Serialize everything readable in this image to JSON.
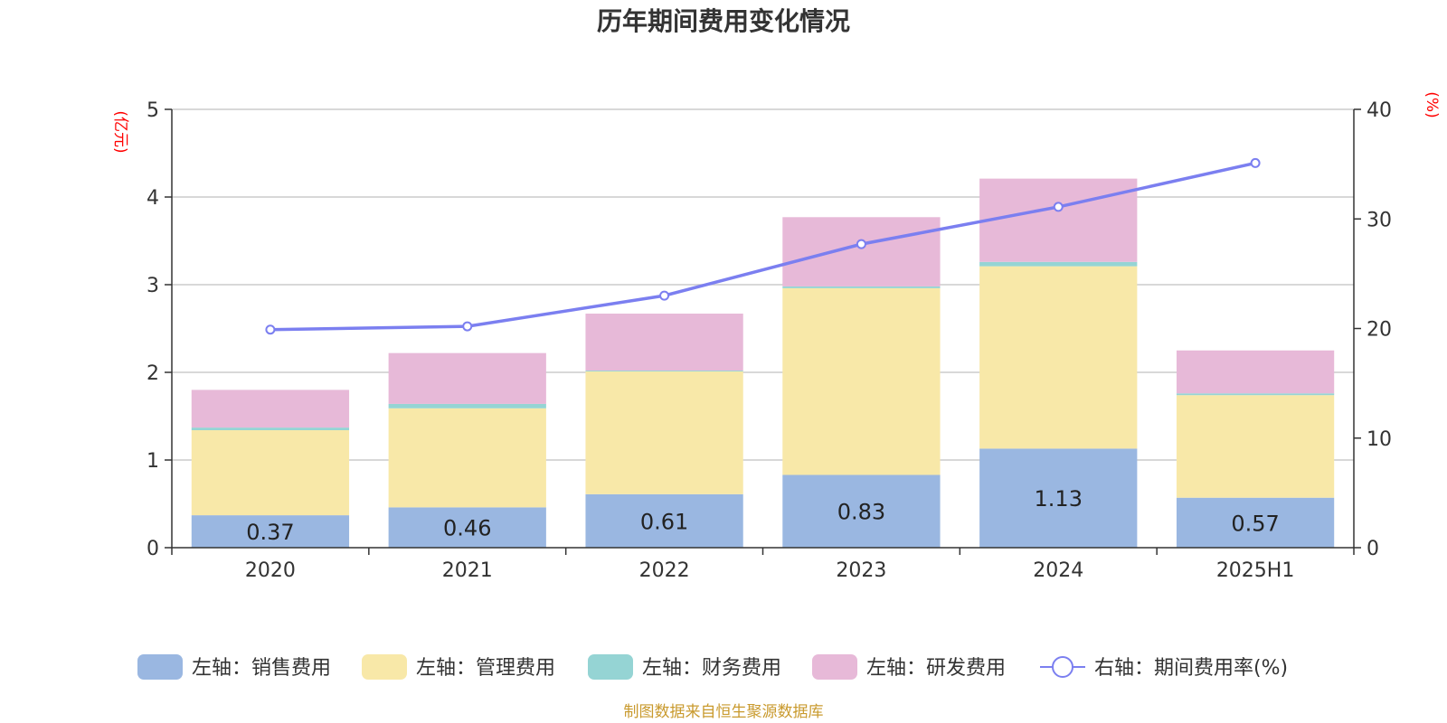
{
  "chart_data": {
    "type": "bar",
    "title": "历年期间费用变化情况",
    "categories": [
      "2020",
      "2021",
      "2022",
      "2023",
      "2024",
      "2025H1"
    ],
    "series": [
      {
        "name": "左轴：销售费用",
        "axis": "left",
        "type": "bar",
        "color": "#9ab7e1",
        "values": [
          0.37,
          0.46,
          0.61,
          0.83,
          1.13,
          0.57
        ]
      },
      {
        "name": "左轴：管理费用",
        "axis": "left",
        "type": "bar",
        "color": "#f8e8a8",
        "values": [
          0.97,
          1.13,
          1.4,
          2.13,
          2.08,
          1.17
        ]
      },
      {
        "name": "左轴：财务费用",
        "axis": "left",
        "type": "bar",
        "color": "#95d4d4",
        "values": [
          0.03,
          0.05,
          0.01,
          0.02,
          0.05,
          0.02
        ]
      },
      {
        "name": "左轴：研发费用",
        "axis": "left",
        "type": "bar",
        "color": "#e7b9d8",
        "values": [
          0.43,
          0.58,
          0.65,
          0.79,
          0.95,
          0.49
        ]
      },
      {
        "name": "右轴：期间费用率(%)",
        "axis": "right",
        "type": "line",
        "color": "#7b7ff0",
        "values": [
          19.9,
          20.2,
          23.0,
          27.7,
          31.1,
          35.1
        ]
      }
    ],
    "bar_labels": [
      "0.37",
      "0.46",
      "0.61",
      "0.83",
      "1.13",
      "0.57"
    ],
    "y_left": {
      "unit": "(亿元)",
      "ylim": [
        0,
        5
      ],
      "ticks": [
        "0",
        "1",
        "2",
        "3",
        "4",
        "5"
      ]
    },
    "y_right": {
      "unit": "(%)",
      "ylim": [
        0,
        40
      ],
      "ticks": [
        "0",
        "10",
        "20",
        "30",
        "40"
      ]
    },
    "grid": true,
    "legend_position": "bottom",
    "stacked": true
  },
  "source_note": "制图数据来自恒生聚源数据库"
}
